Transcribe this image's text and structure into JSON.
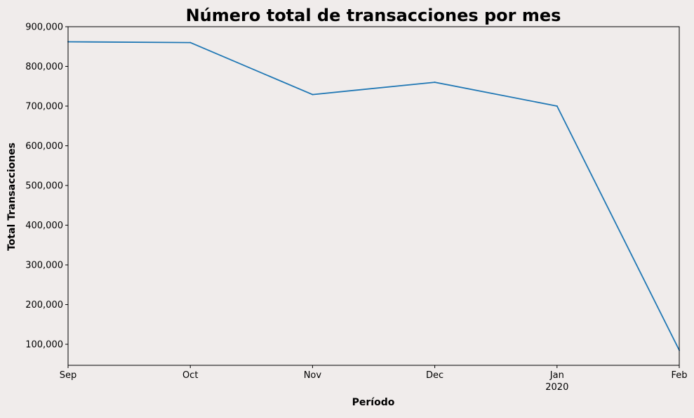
{
  "chart_data": {
    "type": "line",
    "title": "Número total de transacciones por mes",
    "xlabel": "Período",
    "ylabel": "Total Transacciones",
    "x": [
      "Sep",
      "Oct",
      "Nov",
      "Dec",
      "Jan",
      "Feb"
    ],
    "x_sublabels": [
      "",
      "",
      "",
      "",
      "2020",
      ""
    ],
    "series": [
      {
        "values": [
          862000,
          860000,
          729000,
          760000,
          700000,
          85000
        ]
      }
    ],
    "ylim": [
      47000,
      900000
    ],
    "yticks": [
      100000,
      200000,
      300000,
      400000,
      500000,
      600000,
      700000,
      800000,
      900000
    ],
    "ytick_labels": [
      "100,000",
      "200,000",
      "300,000",
      "400,000",
      "500,000",
      "600,000",
      "700,000",
      "800,000",
      "900,000"
    ],
    "grid": false,
    "colors": {
      "line": "#1f77b4",
      "background": "#f0eceb"
    }
  }
}
